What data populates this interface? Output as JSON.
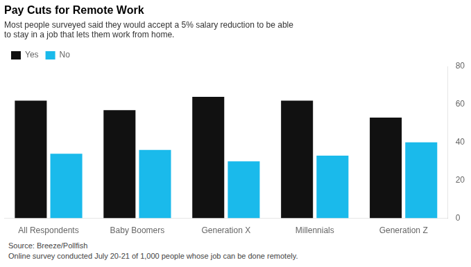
{
  "chart_data": {
    "type": "bar",
    "title": "Pay Cuts for Remote Work",
    "subtitle": "Most people surveyed said they would accept a 5% salary reduction to be able\nto stay in a job that lets them work from home.",
    "categories": [
      "All Respondents",
      "Baby Boomers",
      "Generation X",
      "Millennials",
      "Generation Z"
    ],
    "series": [
      {
        "name": "Yes",
        "color": "#111111",
        "values": [
          62,
          57,
          64,
          62,
          53
        ]
      },
      {
        "name": "No",
        "color": "#1ABAEB",
        "values": [
          34,
          36,
          30,
          33,
          40
        ]
      }
    ],
    "ylim": [
      0,
      80
    ],
    "yticks": [
      0,
      20,
      40,
      60,
      80
    ],
    "grid": false,
    "legend": "upper left",
    "annotations": [
      "Source: Breeze/Pollfish",
      "Online survey conducted July 20-21 of 1,000 people whose job can be done remotely."
    ]
  }
}
